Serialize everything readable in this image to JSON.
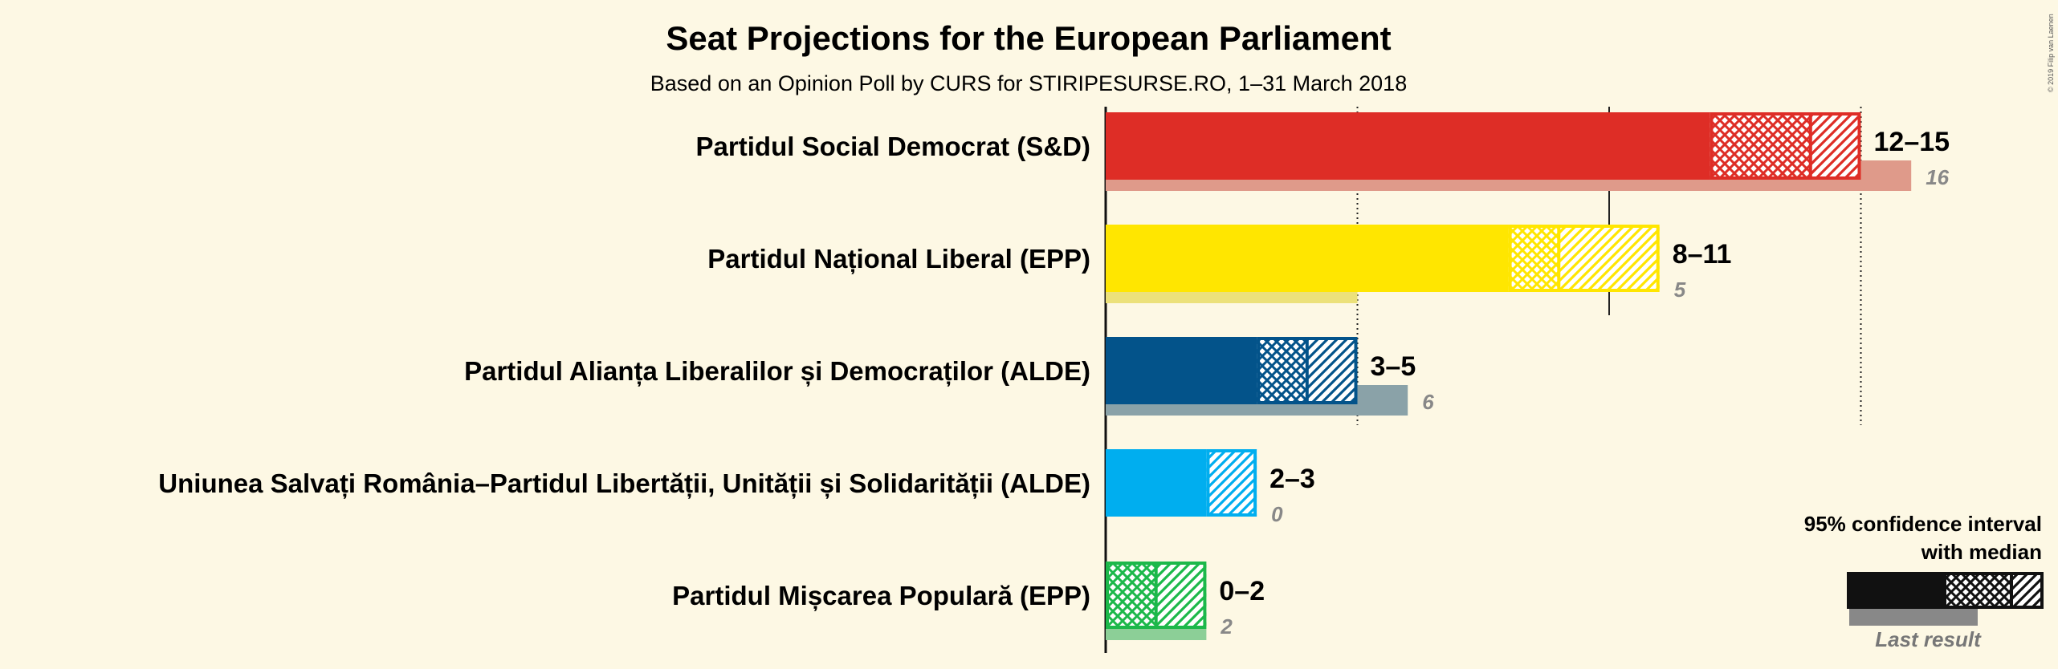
{
  "chart_data": {
    "type": "bar",
    "orientation": "horizontal",
    "title": "Seat Projections for the European Parliament",
    "subtitle": "Based on an Opinion Poll by CURS for STIRIPESURSE.RO, 1–31 March 2018",
    "xlim": [
      0,
      16
    ],
    "gridlines_dotted": [
      5,
      15
    ],
    "gridline_solid": 10,
    "categories": [
      "Partidul Social Democrat (S&D)",
      "Partidul Național Liberal (EPP)",
      "Partidul Alianța Liberalilor și Democraților (ALDE)",
      "Uniunea Salvați România–Partidul Libertății, Unității și Solidarității (ALDE)",
      "Partidul Mișcarea Populară (EPP)"
    ],
    "series": [
      {
        "low": 12,
        "median": 14,
        "high": 15,
        "range_label": "12–15",
        "last_result": 16,
        "last_label": "16",
        "color": "#de2d26",
        "last_color": "#df9a8a"
      },
      {
        "low": 8,
        "median": 9,
        "high": 11,
        "range_label": "8–11",
        "last_result": 5,
        "last_label": "5",
        "color": "#ffe600",
        "last_color": "#ece17a"
      },
      {
        "low": 3,
        "median": 4,
        "high": 5,
        "range_label": "3–5",
        "last_result": 6,
        "last_label": "6",
        "color": "#03538a",
        "last_color": "#8aa2a8"
      },
      {
        "low": 2,
        "median": 2,
        "high": 3,
        "range_label": "2–3",
        "last_result": 0,
        "last_label": "0",
        "color": "#00aeef",
        "last_color": "#8fd0e8"
      },
      {
        "low": 0,
        "median": 1,
        "high": 2,
        "range_label": "0–2",
        "last_result": 2,
        "last_label": "2",
        "color": "#1cb84a",
        "last_color": "#8ccf97"
      }
    ],
    "legend": {
      "title_line1": "95% confidence interval",
      "title_line2": "with median",
      "last_result_label": "Last result",
      "position": "bottom-right"
    },
    "copyright": "© 2019 Filip van Laenen"
  }
}
